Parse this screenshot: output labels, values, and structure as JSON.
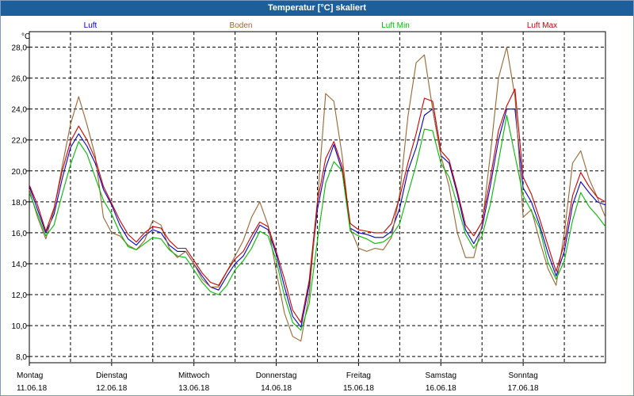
{
  "window": {
    "title": "Temperatur [°C] skaliert"
  },
  "chart_data": {
    "type": "line",
    "title": "Temperatur [°C] skaliert",
    "ylabel": "°C",
    "xlabel": "",
    "ylim": [
      7.6,
      29.0
    ],
    "xlim": [
      0,
      7
    ],
    "grid": true,
    "y_ticks": [
      "8,0",
      "10,0",
      "12,0",
      "14,0",
      "16,0",
      "18,0",
      "20,0",
      "22,0",
      "24,0",
      "26,0",
      "28,0"
    ],
    "x_ticks": [
      {
        "day": "Montag",
        "date": "11.06.18"
      },
      {
        "day": "Dienstag",
        "date": "12.06.18"
      },
      {
        "day": "Mittwoch",
        "date": "13.06.18"
      },
      {
        "day": "Donnerstag",
        "date": "14.06.18"
      },
      {
        "day": "Freitag",
        "date": "15.06.18"
      },
      {
        "day": "Samstag",
        "date": "16.06.18"
      },
      {
        "day": "Sonntag",
        "date": "17.06.18"
      }
    ],
    "x": [
      0.0,
      0.1,
      0.2,
      0.3,
      0.4,
      0.5,
      0.6,
      0.7,
      0.8,
      0.9,
      1.0,
      1.1,
      1.2,
      1.3,
      1.4,
      1.5,
      1.6,
      1.7,
      1.8,
      1.9,
      2.0,
      2.1,
      2.2,
      2.3,
      2.4,
      2.5,
      2.6,
      2.7,
      2.8,
      2.9,
      3.0,
      3.1,
      3.2,
      3.3,
      3.4,
      3.5,
      3.6,
      3.7,
      3.8,
      3.9,
      4.0,
      4.1,
      4.2,
      4.3,
      4.4,
      4.5,
      4.6,
      4.7,
      4.8,
      4.9,
      5.0,
      5.1,
      5.2,
      5.3,
      5.4,
      5.5,
      5.6,
      5.7,
      5.8,
      5.9,
      6.0,
      6.1,
      6.2,
      6.3,
      6.4,
      6.5,
      6.6,
      6.7,
      6.8,
      6.9,
      7.0
    ],
    "series": [
      {
        "name": "Luft",
        "color": "#0000cc",
        "values": [
          19.0,
          17.5,
          16.0,
          17.2,
          19.5,
          21.5,
          22.4,
          21.6,
          20.5,
          18.8,
          17.8,
          16.5,
          15.6,
          15.2,
          15.8,
          16.2,
          16.0,
          15.2,
          14.8,
          14.8,
          14.0,
          13.2,
          12.5,
          12.3,
          13.2,
          14.0,
          14.5,
          15.5,
          16.5,
          16.2,
          14.6,
          12.5,
          10.6,
          9.9,
          12.6,
          17.5,
          20.2,
          21.7,
          20.0,
          16.3,
          16.0,
          15.9,
          15.7,
          15.7,
          16.1,
          17.6,
          20.0,
          21.5,
          23.6,
          24.0,
          21.0,
          20.5,
          18.5,
          16.2,
          15.3,
          16.3,
          19.0,
          22.0,
          24.0,
          24.0,
          18.9,
          18.0,
          16.5,
          14.7,
          13.2,
          14.8,
          17.8,
          19.3,
          18.6,
          18.0,
          17.8
        ]
      },
      {
        "name": "Boden",
        "color": "#996633",
        "values": [
          18.8,
          17.0,
          15.6,
          17.5,
          20.3,
          23.0,
          24.8,
          23.0,
          21.0,
          17.0,
          16.0,
          15.8,
          15.2,
          14.9,
          15.5,
          16.8,
          16.5,
          15.0,
          14.4,
          14.8,
          14.0,
          13.0,
          12.5,
          12.5,
          13.5,
          14.5,
          15.5,
          17.0,
          18.0,
          16.5,
          13.5,
          10.8,
          9.3,
          9.0,
          12.0,
          18.0,
          25.0,
          24.5,
          21.0,
          16.3,
          15.0,
          14.8,
          15.0,
          14.9,
          15.7,
          18.5,
          23.5,
          27.0,
          27.5,
          24.0,
          21.0,
          19.0,
          16.0,
          14.4,
          14.4,
          16.5,
          21.0,
          26.0,
          28.0,
          24.8,
          17.0,
          17.5,
          15.5,
          13.7,
          12.6,
          16.0,
          20.5,
          21.3,
          19.5,
          18.3,
          17.0
        ]
      },
      {
        "name": "Luft Min",
        "color": "#00bb00",
        "values": [
          18.6,
          17.2,
          15.8,
          16.5,
          18.5,
          20.4,
          21.9,
          21.1,
          19.6,
          18.1,
          17.2,
          16.0,
          15.1,
          14.9,
          15.3,
          15.7,
          15.6,
          14.9,
          14.5,
          14.4,
          13.6,
          12.8,
          12.2,
          12.0,
          12.6,
          13.6,
          14.2,
          15.0,
          16.1,
          15.8,
          14.2,
          11.9,
          10.2,
          9.7,
          11.4,
          15.5,
          19.2,
          20.6,
          20.0,
          16.1,
          15.8,
          15.6,
          15.3,
          15.4,
          15.8,
          16.6,
          18.5,
          20.4,
          22.7,
          22.6,
          20.5,
          19.6,
          17.8,
          15.9,
          15.0,
          15.8,
          17.8,
          20.6,
          23.6,
          21.0,
          18.4,
          17.4,
          16.3,
          14.1,
          13.0,
          14.2,
          16.8,
          18.6,
          17.7,
          17.1,
          16.4
        ]
      },
      {
        "name": "Luft Max",
        "color": "#cc0000",
        "values": [
          19.1,
          17.8,
          16.1,
          17.6,
          20.0,
          21.9,
          22.9,
          22.0,
          20.8,
          19.0,
          17.9,
          16.8,
          15.9,
          15.4,
          16.0,
          16.4,
          16.3,
          15.5,
          15.0,
          15.0,
          14.2,
          13.4,
          12.8,
          12.6,
          13.5,
          14.3,
          14.8,
          15.8,
          16.7,
          16.4,
          14.8,
          13.0,
          11.0,
          10.2,
          12.9,
          18.0,
          20.8,
          21.9,
          20.3,
          16.6,
          16.2,
          16.1,
          16.0,
          16.0,
          16.6,
          18.3,
          20.5,
          22.4,
          24.7,
          24.5,
          21.3,
          20.7,
          18.7,
          16.5,
          15.8,
          16.7,
          19.5,
          22.6,
          24.2,
          25.3,
          19.6,
          18.5,
          16.9,
          15.2,
          13.5,
          15.3,
          18.4,
          19.9,
          19.0,
          18.3,
          18.0
        ]
      }
    ]
  }
}
